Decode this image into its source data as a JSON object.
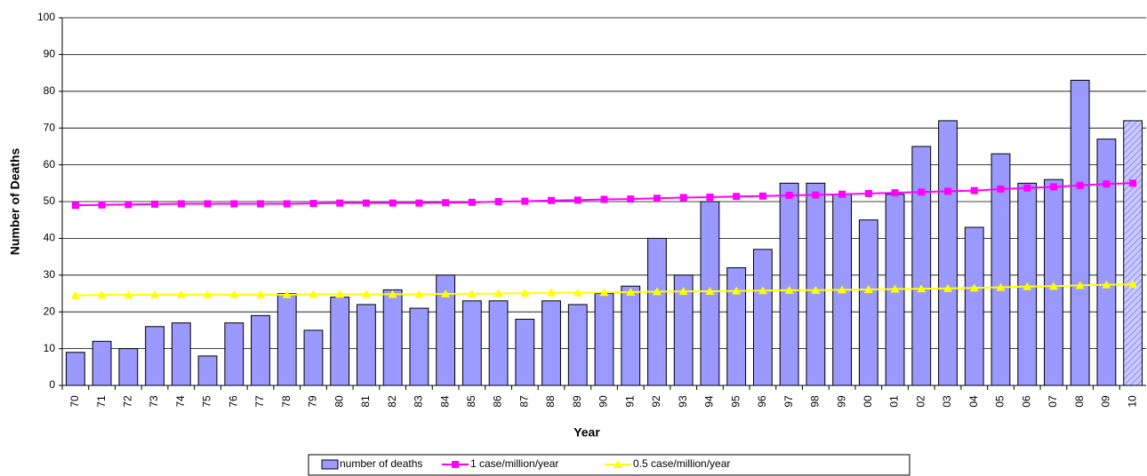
{
  "chart_data": {
    "type": "bar_line",
    "x_label": "Year",
    "y_label": "Number of Deaths",
    "categories": [
      "70",
      "71",
      "72",
      "73",
      "74",
      "75",
      "76",
      "77",
      "78",
      "79",
      "80",
      "81",
      "82",
      "83",
      "84",
      "85",
      "86",
      "87",
      "88",
      "89",
      "90",
      "91",
      "92",
      "93",
      "94",
      "95",
      "96",
      "97",
      "98",
      "99",
      "00",
      "01",
      "02",
      "03",
      "04",
      "05",
      "06",
      "07",
      "08",
      "09",
      "10"
    ],
    "series": [
      {
        "name": "number of deaths",
        "color": "#9999ff",
        "kind": "bar",
        "hatch": "last",
        "values": [
          9,
          12,
          10,
          16,
          17,
          8,
          17,
          19,
          25,
          15,
          24,
          22,
          26,
          21,
          30,
          23,
          23,
          18,
          23,
          22,
          25,
          27,
          40,
          30,
          50,
          32,
          37,
          55,
          55,
          52,
          45,
          52,
          65,
          72,
          43,
          63,
          55,
          56,
          83,
          67,
          72
        ]
      },
      {
        "name": "1 case/million/year",
        "color": "#ff00ff",
        "kind": "line",
        "marker": "square",
        "values": [
          49.0,
          49.1,
          49.2,
          49.3,
          49.4,
          49.4,
          49.4,
          49.4,
          49.4,
          49.5,
          49.6,
          49.6,
          49.6,
          49.6,
          49.7,
          49.8,
          50.0,
          50.1,
          50.3,
          50.4,
          50.6,
          50.7,
          50.9,
          51.1,
          51.2,
          51.4,
          51.5,
          51.7,
          51.8,
          52.0,
          52.2,
          52.4,
          52.6,
          52.8,
          53.0,
          53.4,
          53.7,
          54.0,
          54.4,
          54.8,
          55.0
        ]
      },
      {
        "name": "0.5 case/million/year",
        "color": "#ffff00",
        "kind": "line",
        "marker": "triangle",
        "values": [
          24.5,
          24.6,
          24.6,
          24.7,
          24.7,
          24.7,
          24.7,
          24.7,
          24.7,
          24.8,
          24.8,
          24.8,
          24.8,
          24.8,
          24.9,
          24.9,
          25.0,
          25.1,
          25.2,
          25.2,
          25.3,
          25.4,
          25.5,
          25.6,
          25.6,
          25.7,
          25.8,
          25.9,
          25.9,
          26.0,
          26.1,
          26.2,
          26.3,
          26.4,
          26.5,
          26.7,
          26.9,
          27.0,
          27.2,
          27.4,
          27.5
        ]
      }
    ],
    "ylim": [
      0,
      100
    ],
    "yticks": [
      0,
      10,
      20,
      30,
      40,
      50,
      60,
      70,
      80,
      90,
      100
    ],
    "grid": true,
    "legend": "bottom"
  }
}
